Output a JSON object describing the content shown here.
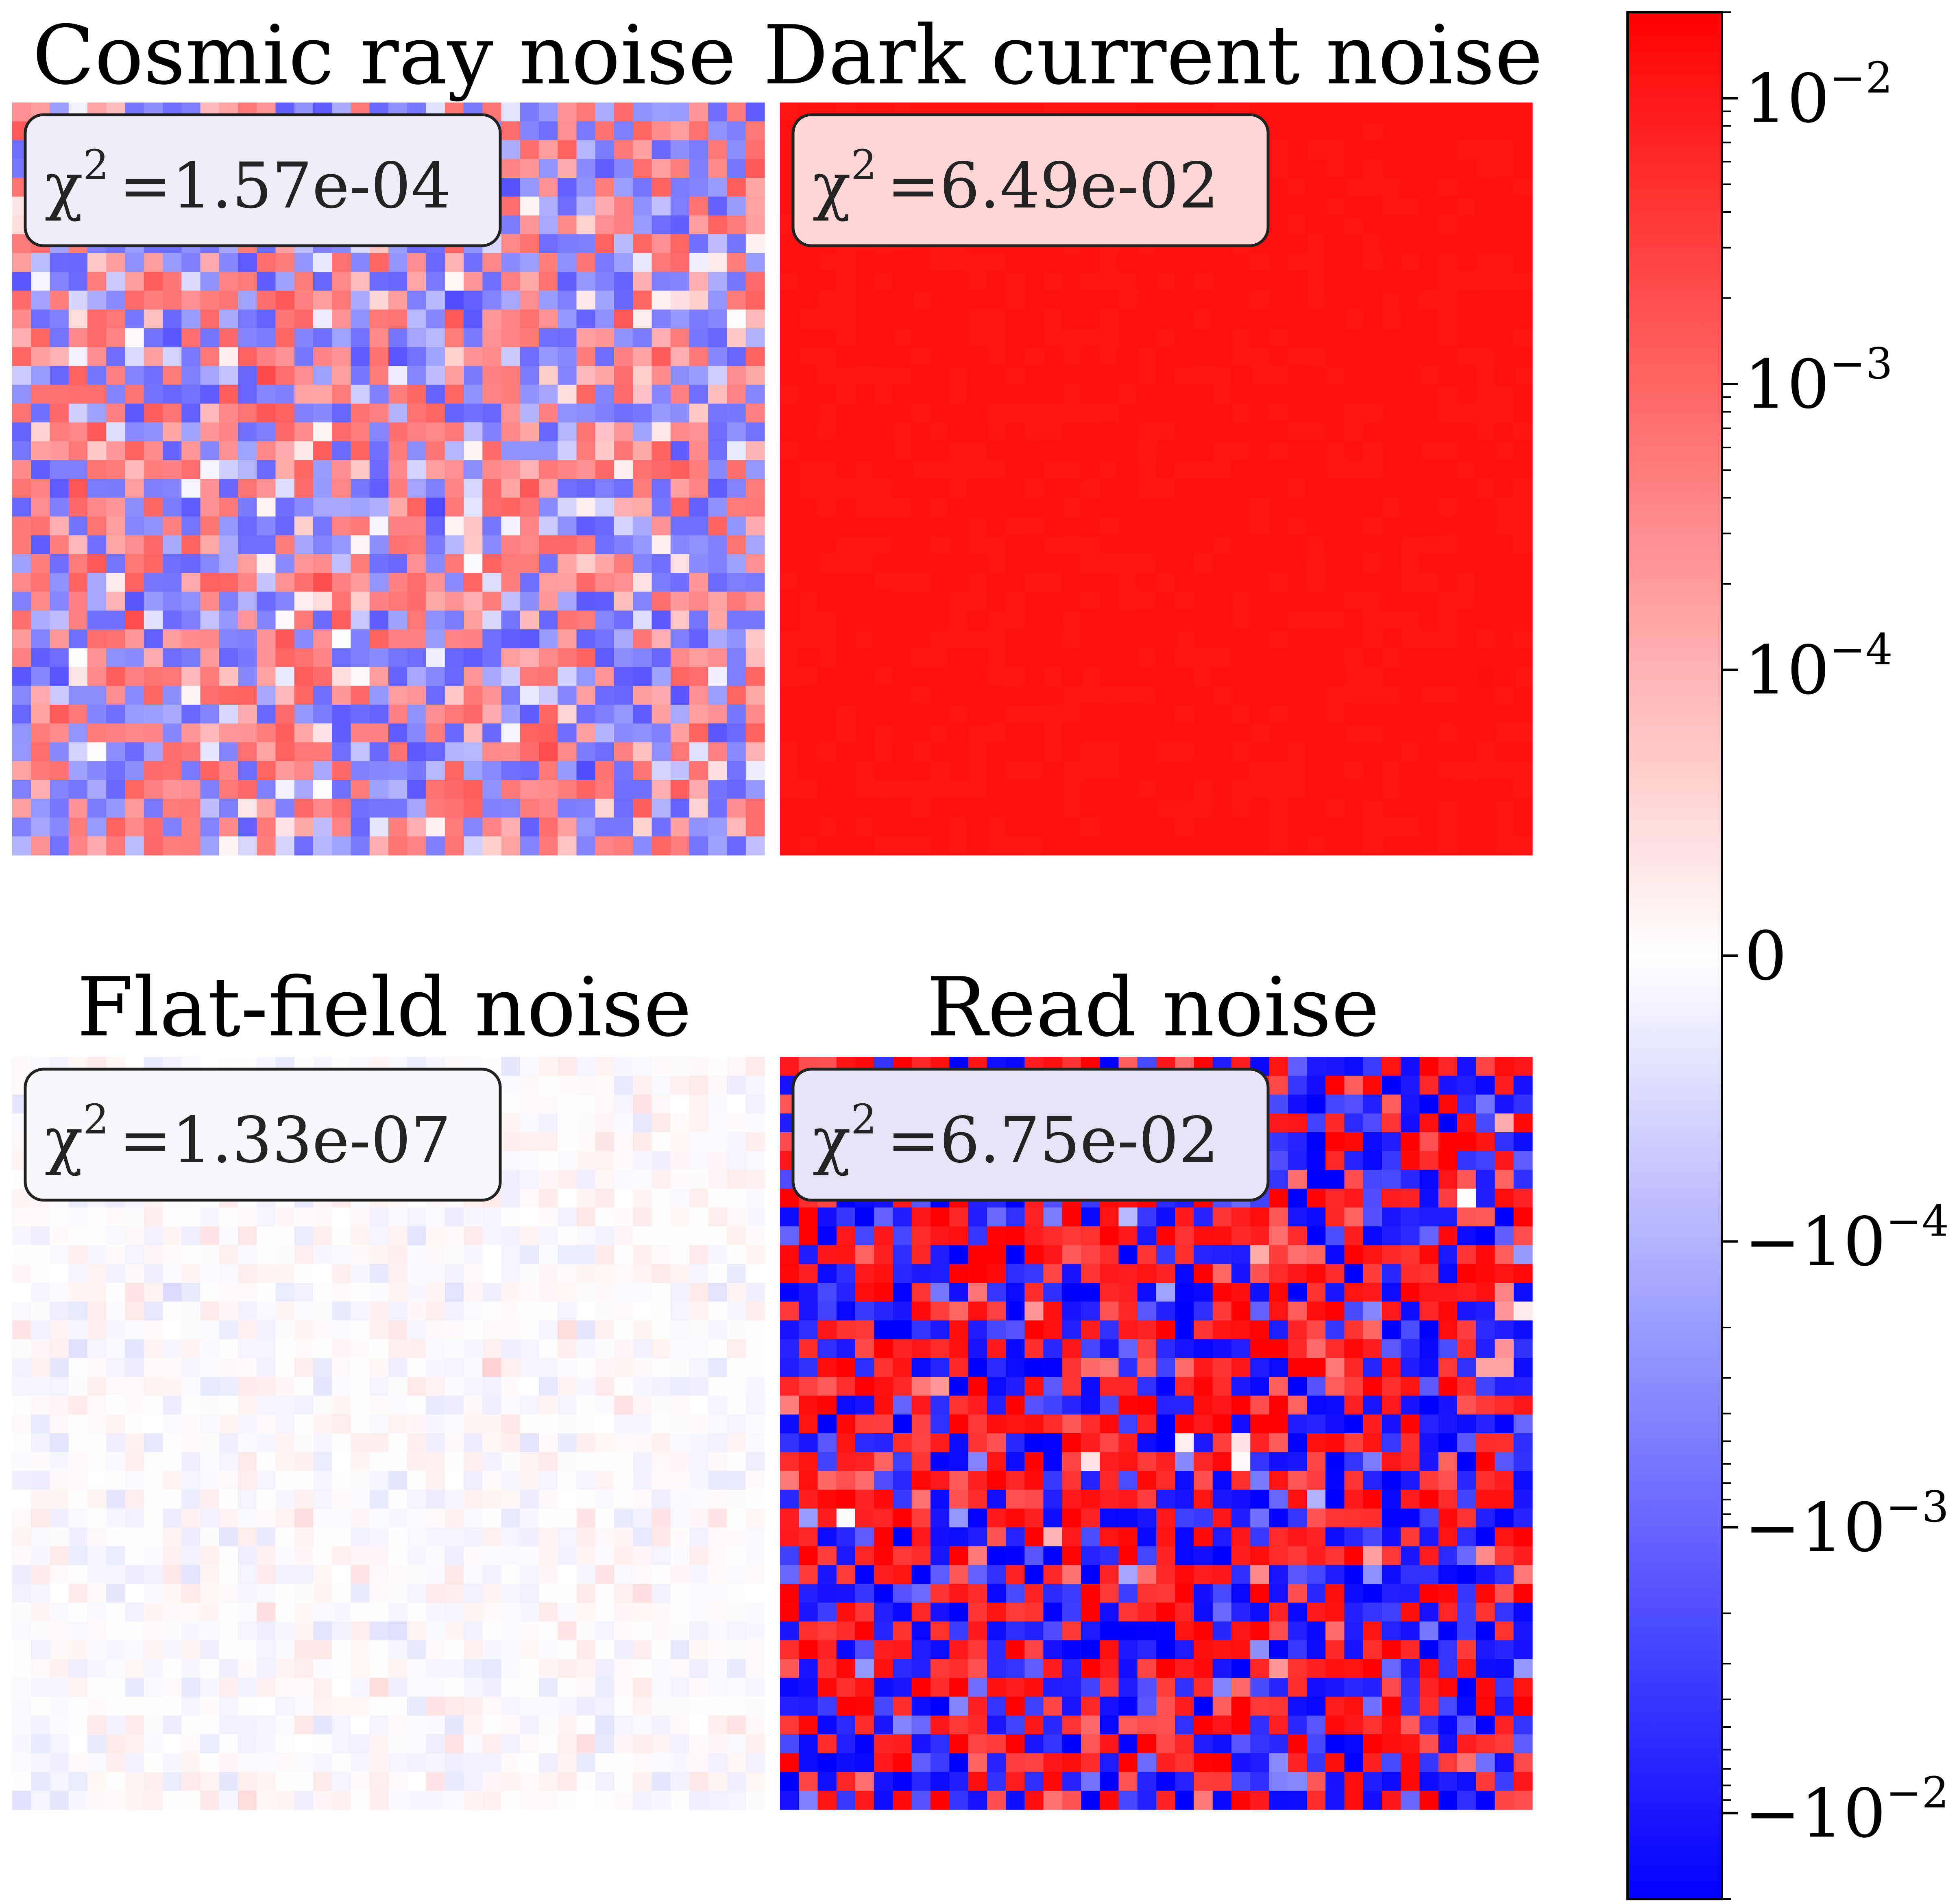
{
  "chart_data": {
    "type": "heatmap",
    "colormap": "bwr",
    "norm": "symlog",
    "colorbar": {
      "orientation": "vertical",
      "placement": "right",
      "range": [
        -0.02,
        0.02
      ],
      "linthresh": 0.0001,
      "ticks": [
        {
          "value": 0.01,
          "base": "10",
          "exp": "−2",
          "sign": ""
        },
        {
          "value": 0.001,
          "base": "10",
          "exp": "−3",
          "sign": ""
        },
        {
          "value": 0.0001,
          "base": "10",
          "exp": "−4",
          "sign": ""
        },
        {
          "value": 0,
          "base": "0",
          "exp": "",
          "sign": ""
        },
        {
          "value": -0.0001,
          "base": "10",
          "exp": "−4",
          "sign": "−"
        },
        {
          "value": -0.001,
          "base": "10",
          "exp": "−3",
          "sign": "−"
        },
        {
          "value": -0.01,
          "base": "10",
          "exp": "−2",
          "sign": "−"
        }
      ]
    },
    "grid_size": 40,
    "panels": [
      {
        "title": "Cosmic ray noise",
        "chi_symbol": "χ",
        "chi_exp": "2",
        "chi_value": "=1.57e-04",
        "pixel_mean": 0.0,
        "pixel_spread": 0.0006,
        "box_fill": "#eeeef8"
      },
      {
        "title": "Dark current noise",
        "chi_symbol": "χ",
        "chi_exp": "2",
        "chi_value": "=6.49e-02",
        "pixel_mean": 0.012,
        "pixel_spread": 0.0003,
        "box_fill": "#ffd6d6"
      },
      {
        "title": "Flat-field noise",
        "chi_symbol": "χ",
        "chi_exp": "2",
        "chi_value": "=1.33e-07",
        "pixel_mean": 0.0,
        "pixel_spread": 1.5e-05,
        "box_fill": "#f8f8fc"
      },
      {
        "title": "Read noise",
        "chi_symbol": "χ",
        "chi_exp": "2",
        "chi_value": "=6.75e-02",
        "pixel_mean": 0.0,
        "pixel_spread": 0.012,
        "box_fill": "#e4e4f6"
      }
    ]
  }
}
